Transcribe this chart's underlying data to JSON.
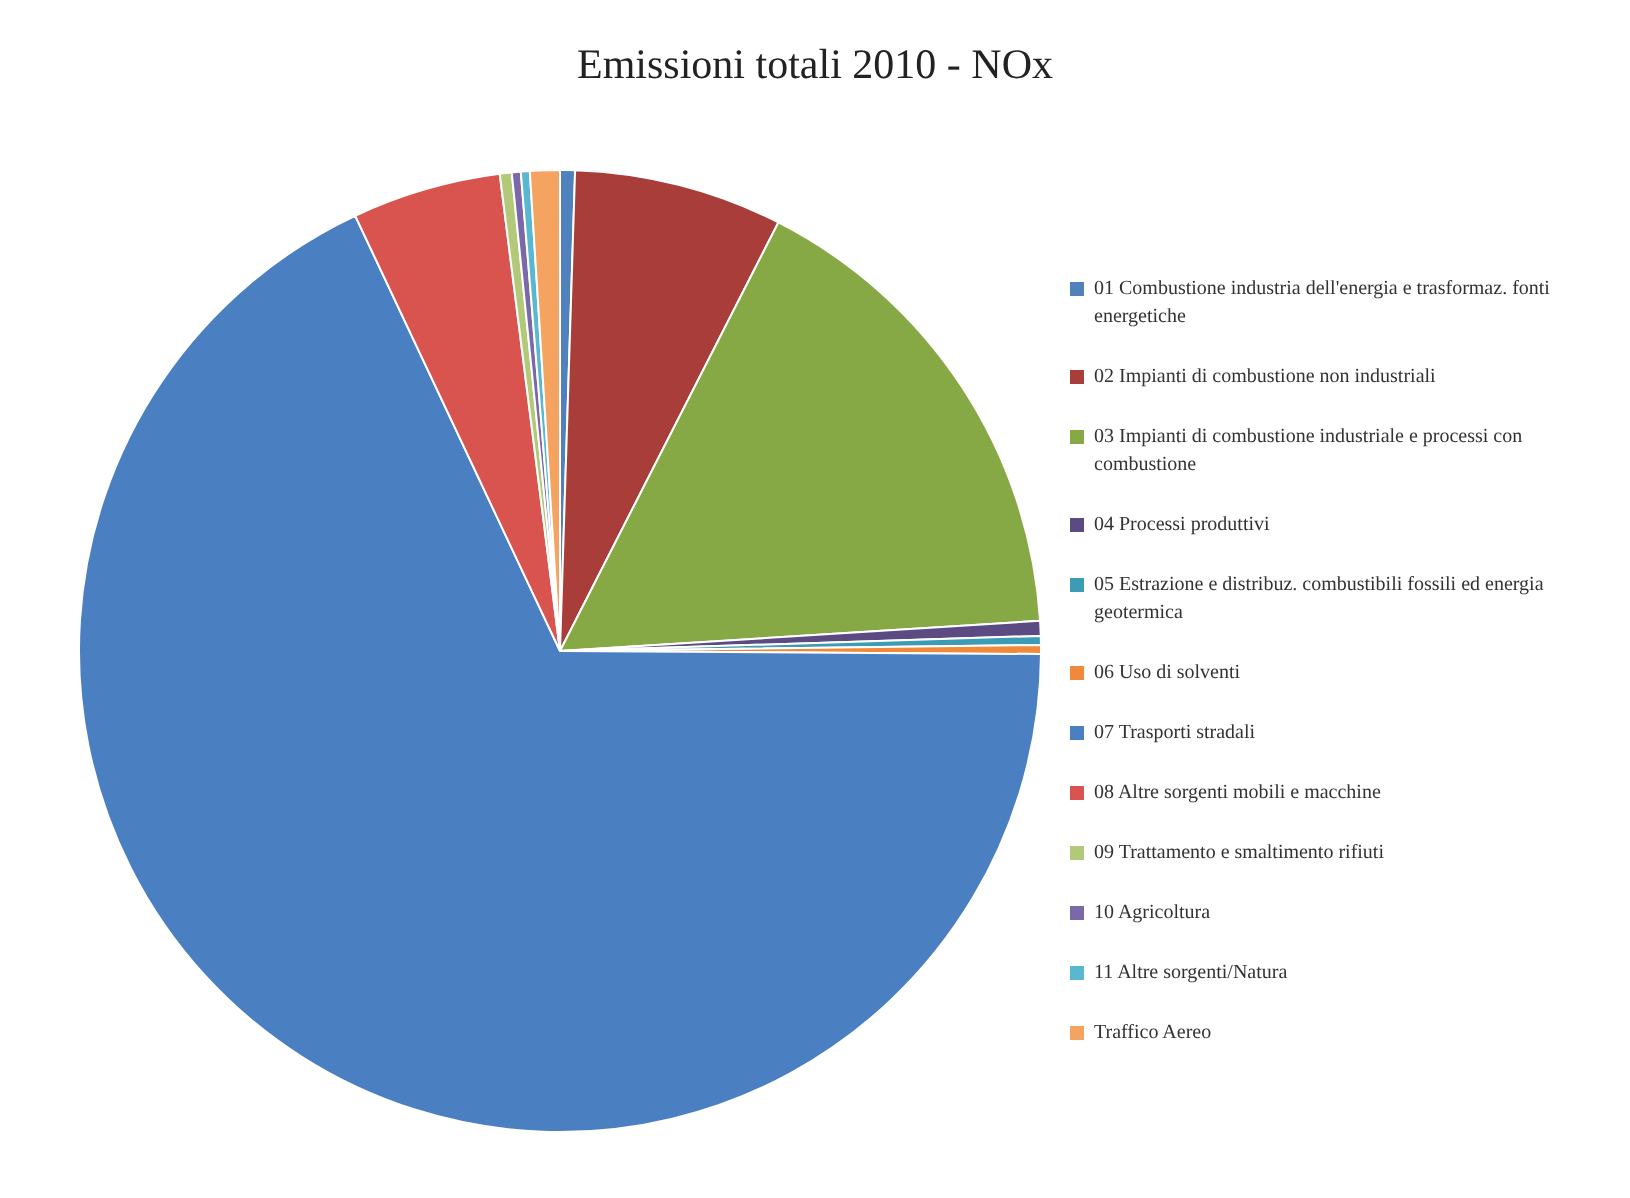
{
  "chart_data": {
    "type": "pie",
    "title": "Emissioni totali 2010 - NOx",
    "categories": [
      "01 Combustione industria dell'energia e trasformaz. fonti energetiche",
      "02 Impianti di combustione non industriali",
      "03 Impianti di combustione industriale e processi con combustione",
      "04 Processi produttivi",
      "05 Estrazione e distribuz. combustibili fossili ed energia geotermica",
      "06 Uso di solventi",
      "07 Trasporti stradali",
      "08 Altre sorgenti mobili e macchine",
      "09 Trattamento e smaltimento rifiuti",
      "10 Agricoltura",
      "11 Altre sorgenti/Natura",
      "Traffico Aereo"
    ],
    "values": [
      0.5,
      7,
      16.5,
      0.5,
      0.3,
      0.3,
      67.9,
      5,
      0.4,
      0.3,
      0.3,
      1
    ],
    "colors": [
      "#4f81bd",
      "#a93d3a",
      "#86a845",
      "#5c4a82",
      "#3c9bb5",
      "#f08a3a",
      "#4a7fc1",
      "#d9534f",
      "#b3c97a",
      "#7b68a8",
      "#5ab7d0",
      "#f4a460"
    ],
    "legend": "right"
  }
}
